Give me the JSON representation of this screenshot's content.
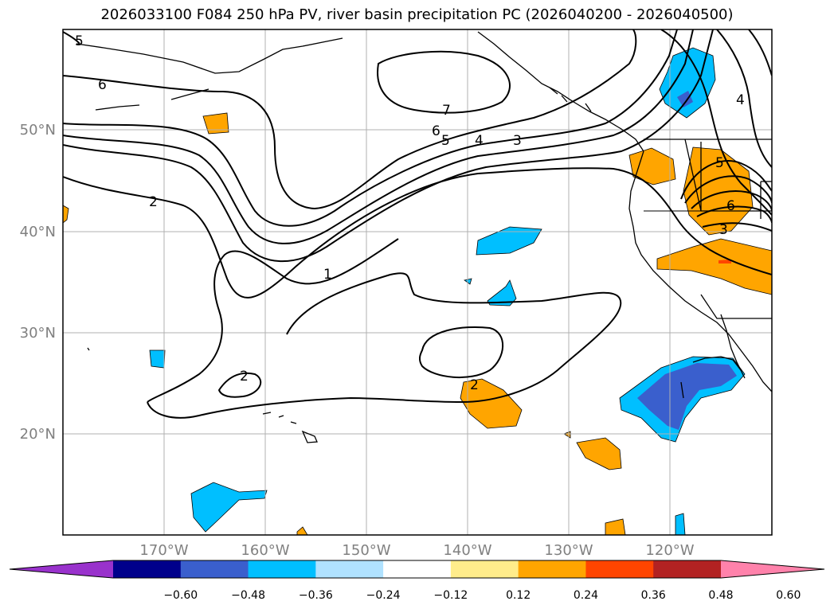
{
  "title": "2026033100 F084 250 hPa PV, river basin precipitation PC (2026040200 - 2026040500)",
  "lat_labels": [
    "50°N",
    "40°N",
    "30°N",
    "20°N"
  ],
  "lon_labels": [
    "170°W",
    "160°W",
    "150°W",
    "140°W",
    "130°W",
    "120°W"
  ],
  "contour_labels": [
    "6",
    "7",
    "6",
    "5",
    "4",
    "3",
    "2",
    "1",
    "2",
    "2",
    "4",
    "5",
    "6",
    "3",
    "5"
  ],
  "colorbar": {
    "ticks": [
      "−0.60",
      "−0.48",
      "−0.36",
      "−0.24",
      "−0.12",
      "0.12",
      "0.24",
      "0.36",
      "0.48",
      "0.60"
    ],
    "colors": [
      "#9932cc",
      "#00008b",
      "#3a5fcd",
      "#00bfff",
      "#b0e2ff",
      "#ffffff",
      "#ffec8b",
      "#ffa500",
      "#ff4500",
      "#b22222",
      "#ff82ab"
    ]
  }
}
